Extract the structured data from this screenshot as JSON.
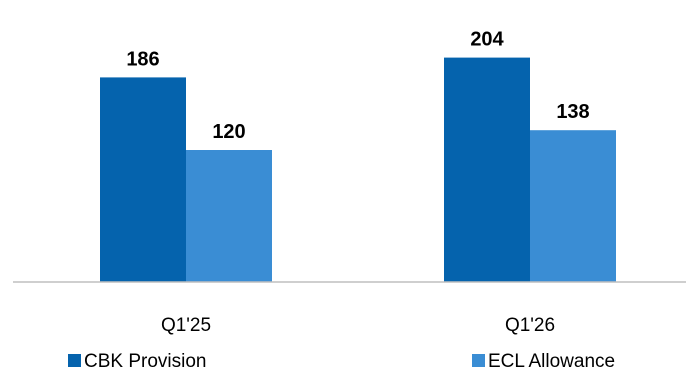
{
  "chart_data": {
    "type": "bar",
    "title": "",
    "xlabel": "",
    "ylabel": "",
    "categories": [
      "Q1'25",
      "Q1'26"
    ],
    "series": [
      {
        "name": "CBK Provision",
        "values": [
          186,
          204
        ],
        "color": "#0563AD"
      },
      {
        "name": "ECL Allowance",
        "values": [
          120,
          138
        ],
        "color": "#3A8DD4"
      }
    ],
    "ylim": [
      0,
      220
    ],
    "grid": false,
    "legend_position": "bottom"
  }
}
